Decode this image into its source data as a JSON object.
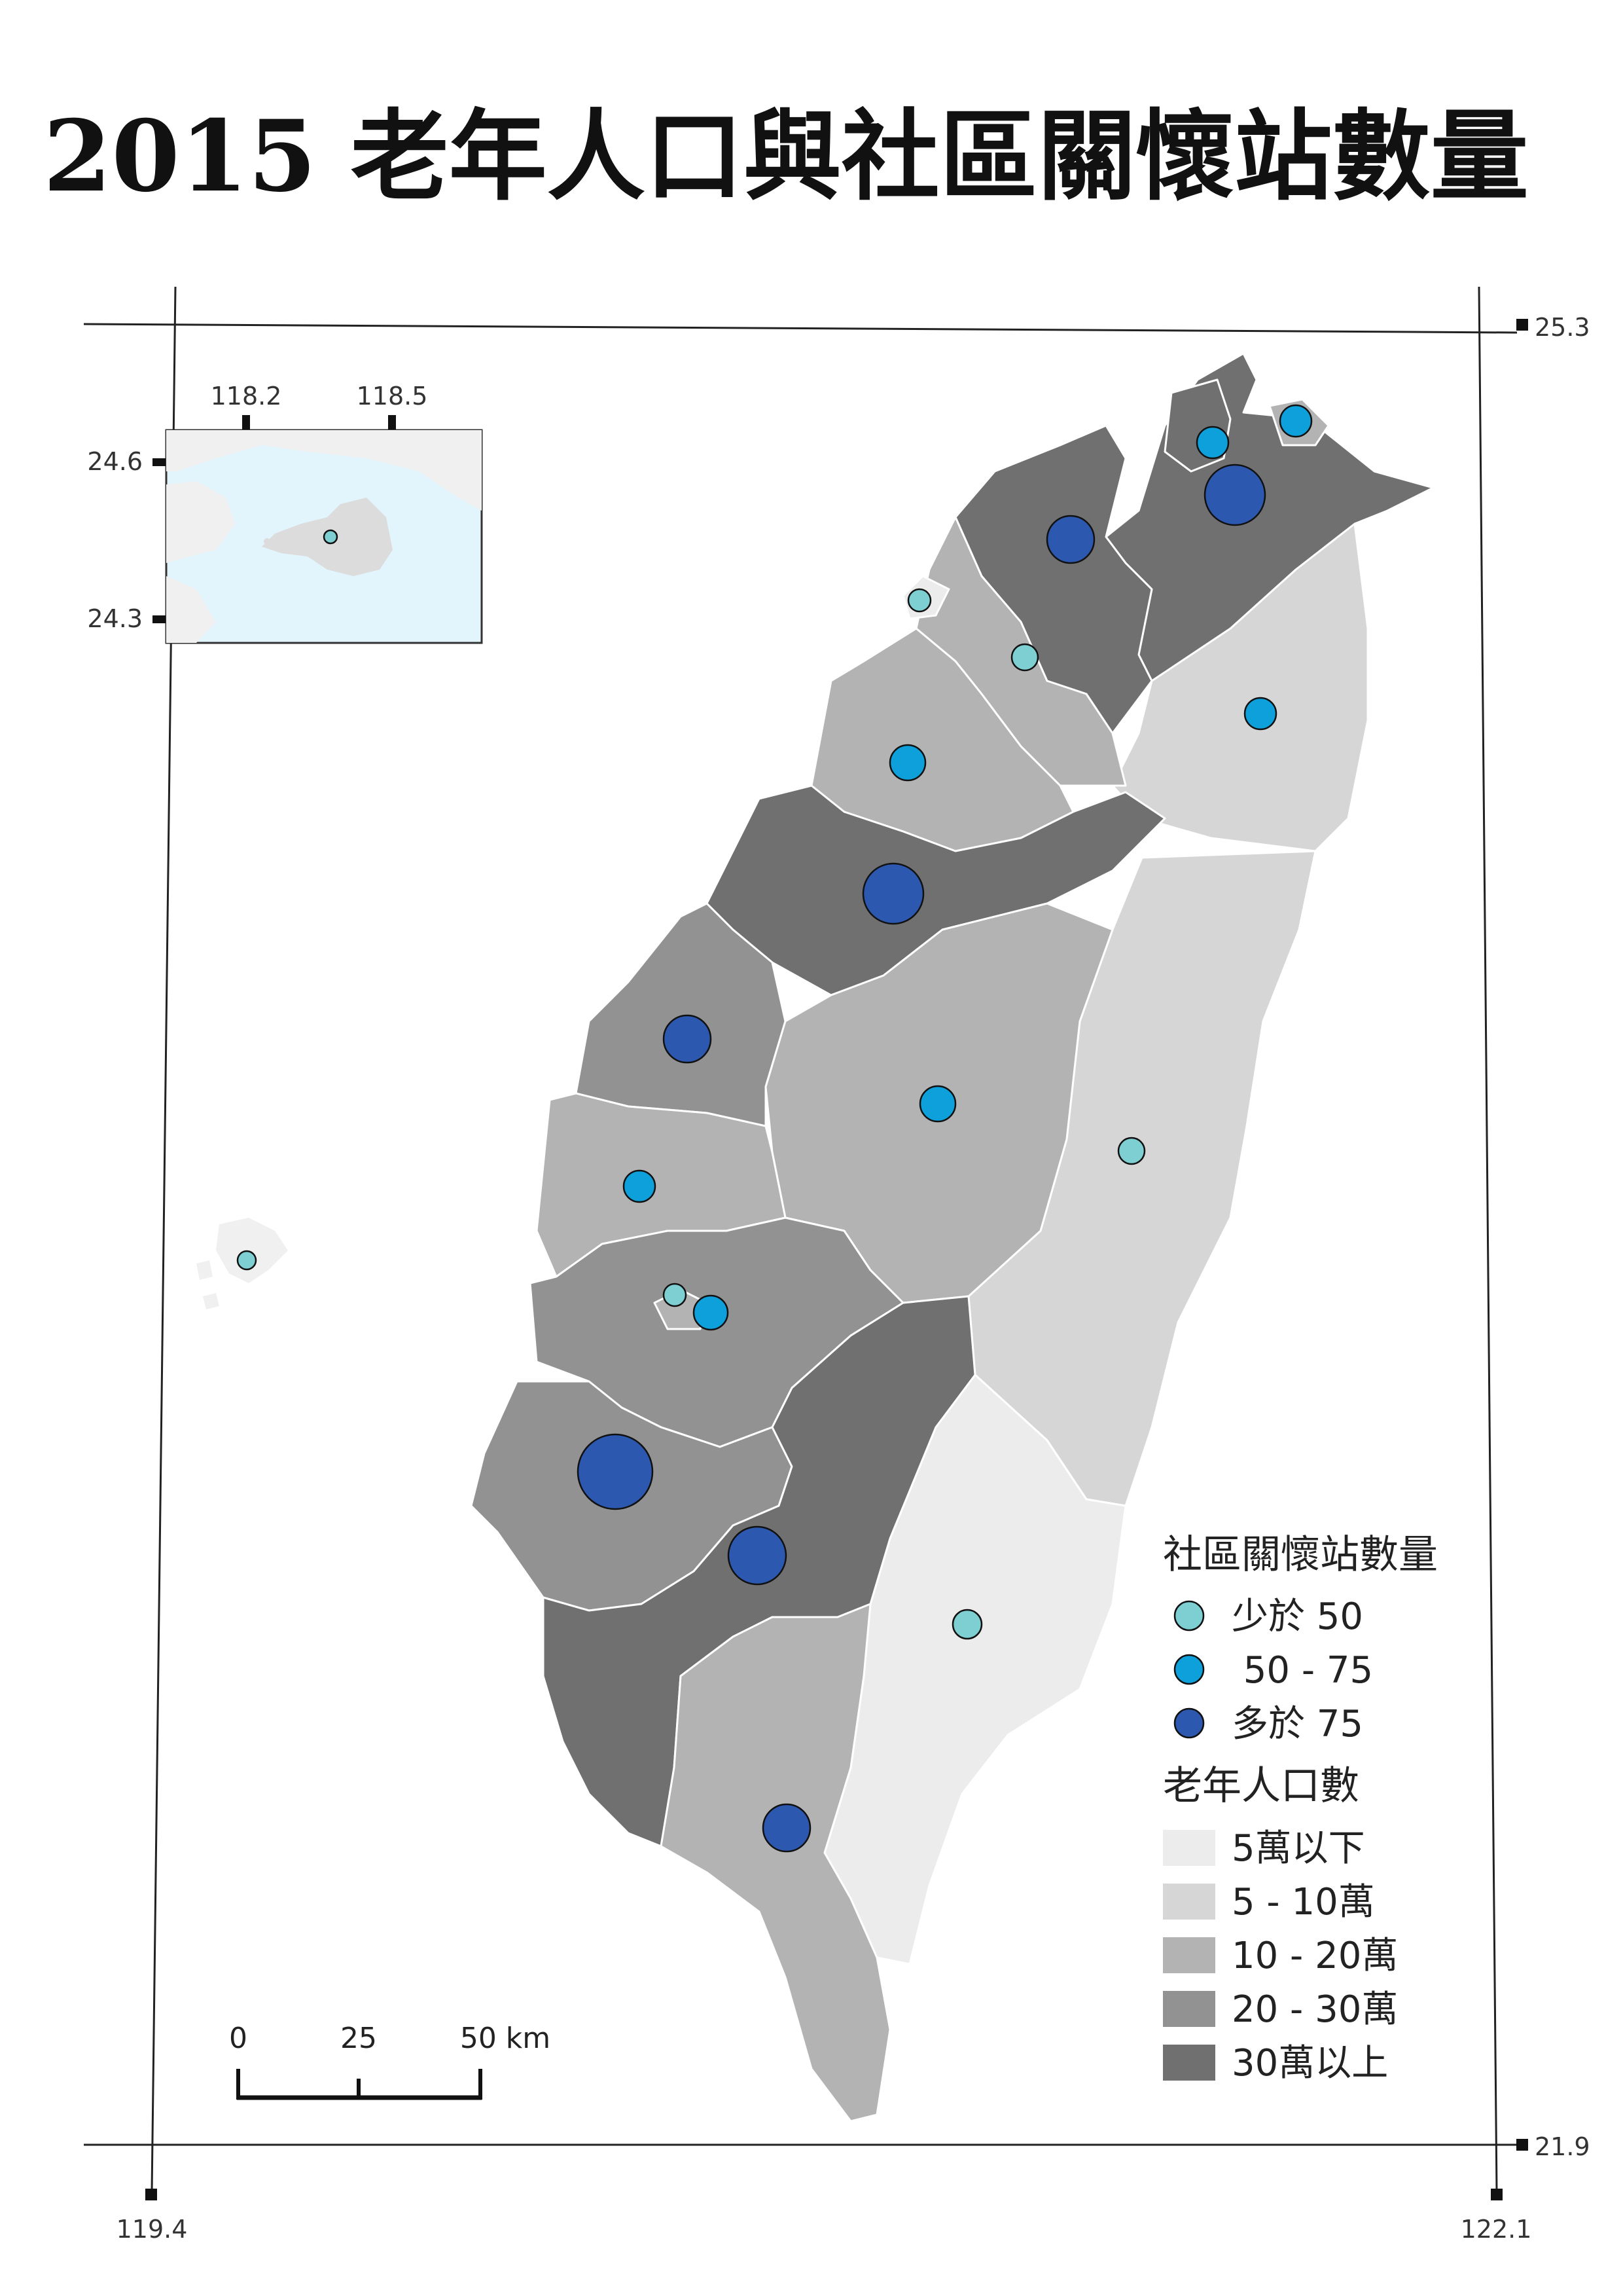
{
  "title": "2015 老年人口與社區關懷站數量",
  "coords": {
    "lat_top": "25.3",
    "lat_bottom": "21.9",
    "lon_left": "119.4",
    "lon_right": "122.1"
  },
  "inset": {
    "lon_a": "118.2",
    "lon_b": "118.5",
    "lat_a": "24.6",
    "lat_b": "24.3"
  },
  "legend": {
    "stations_title": "社區關懷站數量",
    "stations": [
      {
        "label": "少於 50",
        "color": "#7ecfd2"
      },
      {
        "label": " 50 - 75",
        "color": "#0ea0db"
      },
      {
        "label": "多於 75",
        "color": "#2d58b0"
      }
    ],
    "population_title": "老年人口數",
    "population": [
      {
        "label": "5萬以下",
        "color": "#ececec"
      },
      {
        "label": "5 - 10萬",
        "color": "#d6d6d6"
      },
      {
        "label": "10 - 20萬",
        "color": "#b3b3b3"
      },
      {
        "label": "20 - 30萬",
        "color": "#929292"
      },
      {
        "label": "30萬以上",
        "color": "#707070"
      }
    ]
  },
  "scalebar": {
    "label_0": "0",
    "label_25": "25",
    "label_50": "50 km"
  },
  "map_colors": {
    "sea_inset": "#e2f4fc",
    "land_light": "#f0f0f0"
  }
}
